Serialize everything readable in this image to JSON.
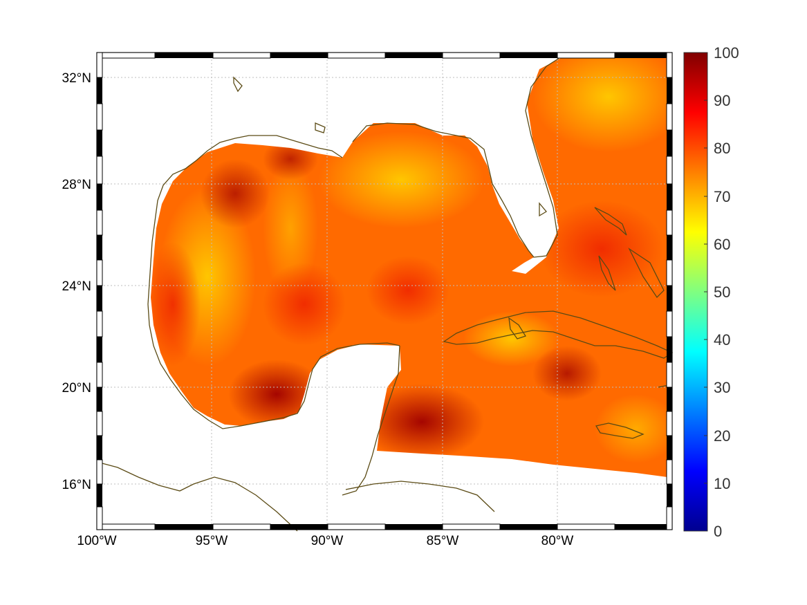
{
  "map": {
    "lon_range": [
      -100,
      -75
    ],
    "lat_range": [
      14.2,
      33
    ],
    "x_ticks": [
      {
        "value": -100,
        "label": "100°W"
      },
      {
        "value": -95,
        "label": "95°W"
      },
      {
        "value": -90,
        "label": "90°W"
      },
      {
        "value": -85,
        "label": "85°W"
      },
      {
        "value": -80,
        "label": "80°W"
      }
    ],
    "y_ticks": [
      {
        "value": 32,
        "label": "32°N"
      },
      {
        "value": 28,
        "label": "28°N"
      },
      {
        "value": 24,
        "label": "24°N"
      },
      {
        "value": 20,
        "label": "20°N"
      },
      {
        "value": 16,
        "label": "16°N"
      }
    ],
    "grid": true,
    "frame_style": "alternating black/white border",
    "colors": {
      "coastline": "#5a4a14",
      "grid": "#bdbdbd",
      "colormap": "jet"
    }
  },
  "colorbar": {
    "range": [
      0,
      100
    ],
    "ticks": [
      "0",
      "10",
      "20",
      "30",
      "40",
      "50",
      "60",
      "70",
      "80",
      "90",
      "100"
    ],
    "colors": [
      "#00008f",
      "#0000ff",
      "#0080ff",
      "#00ffff",
      "#80ff80",
      "#ffff00",
      "#ff8000",
      "#ff0000",
      "#800000"
    ]
  },
  "field": {
    "description_values_range": [
      60,
      100
    ],
    "dominant_level": 80
  }
}
